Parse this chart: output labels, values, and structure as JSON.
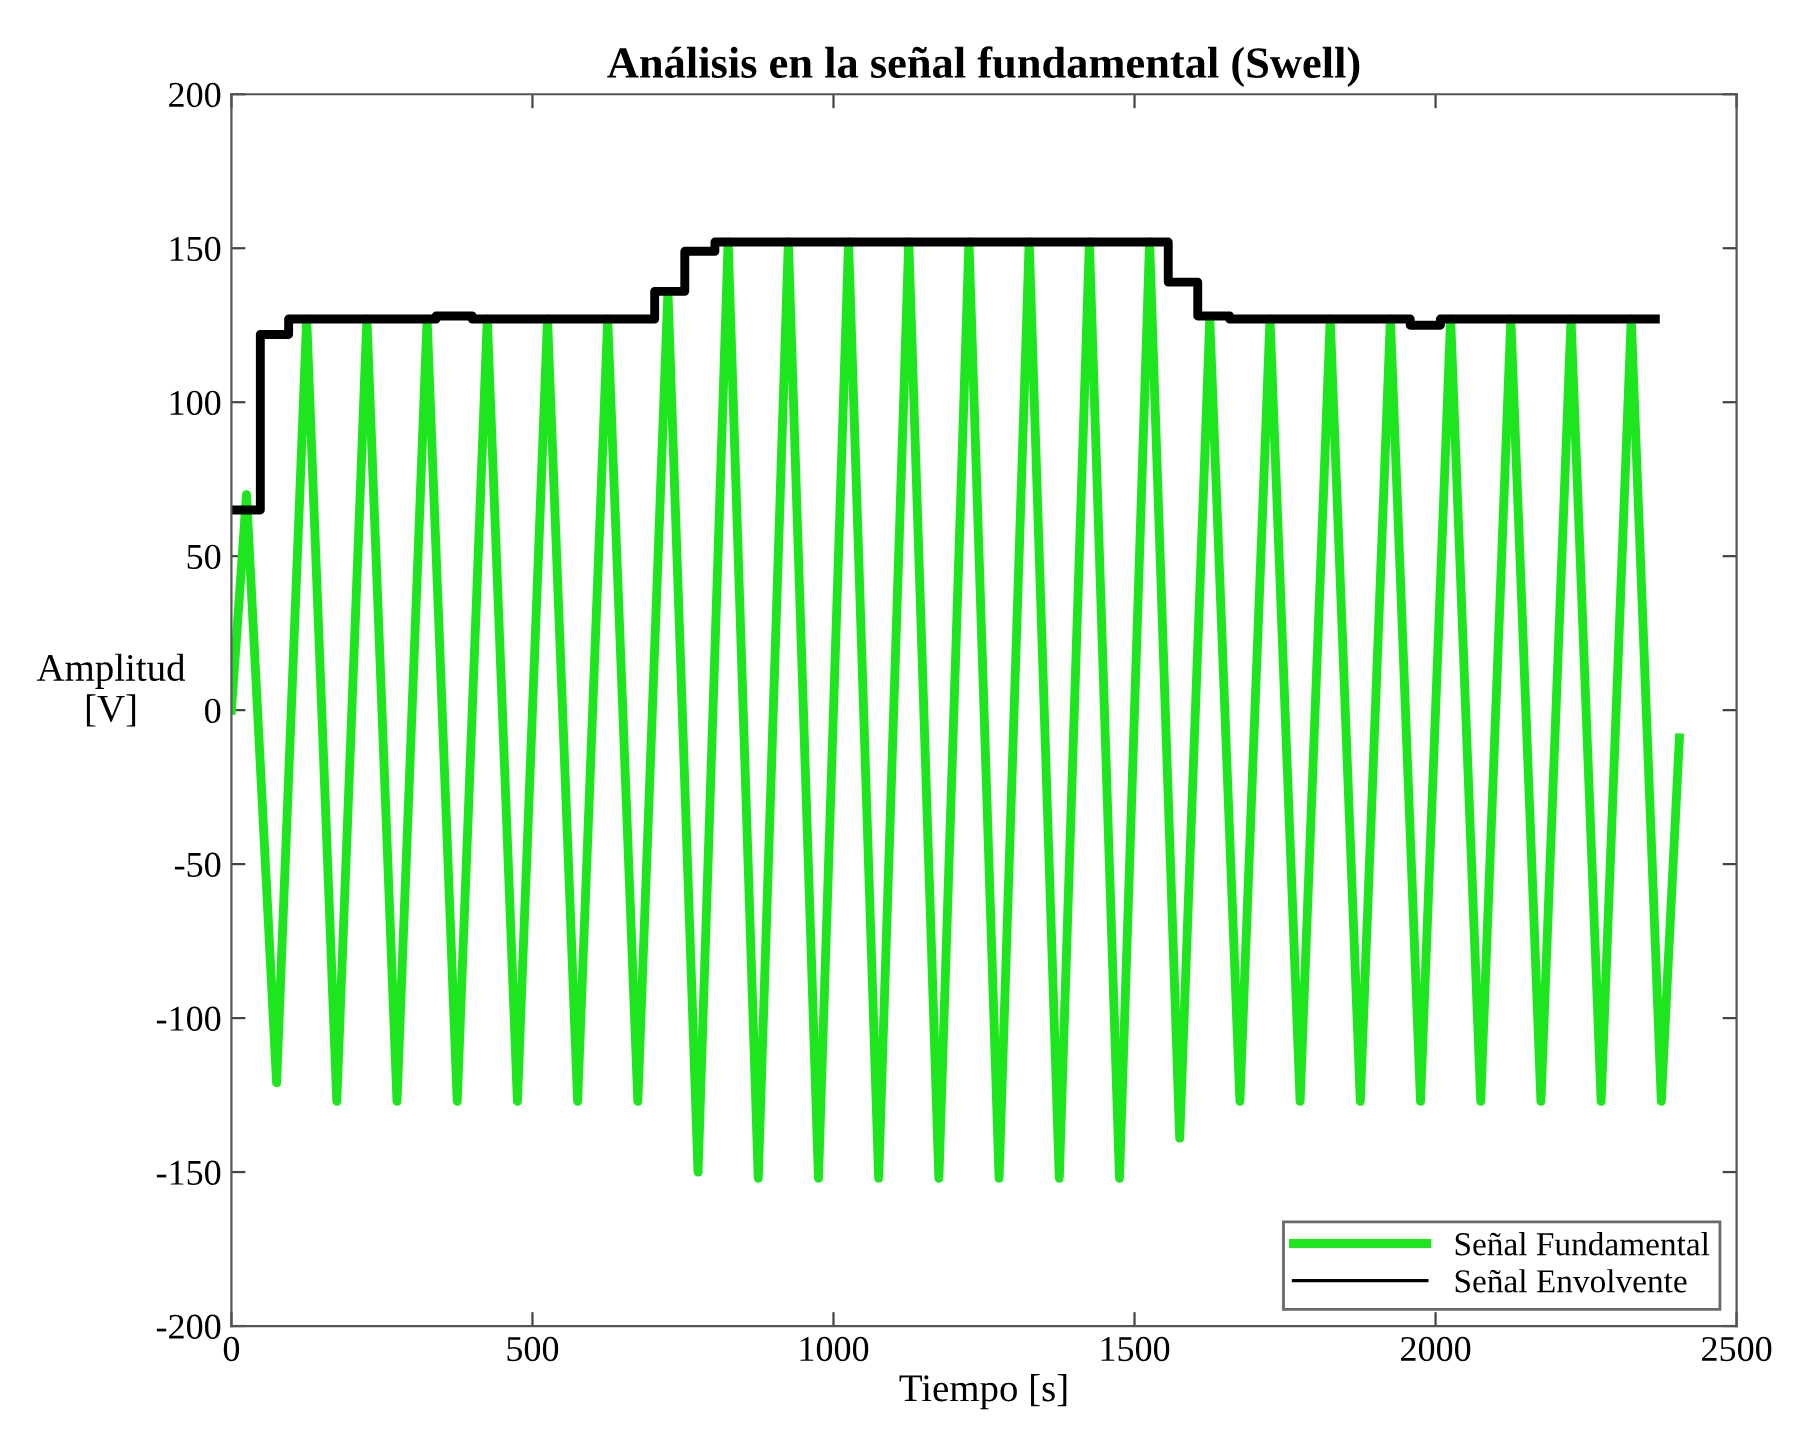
{
  "chart_data": {
    "type": "line",
    "title": "Análisis en la señal fundamental (Swell)",
    "xlabel": "Tiempo [s]",
    "ylabel": "Amplitud\n[V]",
    "xlim": [
      0,
      2500
    ],
    "xticks": [
      0,
      500,
      1000,
      1500,
      2000,
      2500
    ],
    "ylim": [
      -200,
      200
    ],
    "yticks": [
      -200,
      -150,
      -100,
      -50,
      0,
      50,
      100,
      150,
      200
    ],
    "grid": false,
    "legend": "bottom right",
    "series": [
      {
        "name": "Señal Fundamental",
        "color": "#1ee61e",
        "x": [
          0,
          25,
          75,
          125,
          175,
          225,
          275,
          325,
          375,
          425,
          475,
          525,
          575,
          625,
          675,
          725,
          775,
          825,
          875,
          925,
          975,
          1025,
          1075,
          1125,
          1175,
          1225,
          1275,
          1325,
          1375,
          1425,
          1475,
          1525,
          1575,
          1625,
          1675,
          1725,
          1775,
          1825,
          1875,
          1925,
          1975,
          2025,
          2075,
          2125,
          2175,
          2225,
          2275,
          2325,
          2375,
          2405
        ],
        "values": [
          0,
          70,
          -121,
          127,
          -127,
          127,
          -127,
          127,
          -127,
          127,
          -127,
          127,
          -127,
          127,
          -127,
          136,
          -150,
          152,
          -152,
          152,
          -152,
          152,
          -152,
          152,
          -152,
          152,
          -152,
          152,
          -152,
          152,
          -152,
          152,
          -139,
          127,
          -127,
          127,
          -127,
          127,
          -127,
          127,
          -127,
          127,
          -127,
          127,
          -127,
          127,
          -127,
          127,
          -127,
          -9
        ]
      },
      {
        "name": "Señal Envolvente",
        "color": "#000000",
        "type": "step",
        "x": [
          0,
          48,
          95,
          340,
          400,
          703,
          753,
          803,
          1556,
          1605,
          1658,
          1958,
          2008,
          2365
        ],
        "values": [
          65,
          122,
          127,
          128,
          127,
          136,
          149,
          152,
          139,
          128,
          127,
          125,
          127,
          127
        ]
      }
    ]
  }
}
